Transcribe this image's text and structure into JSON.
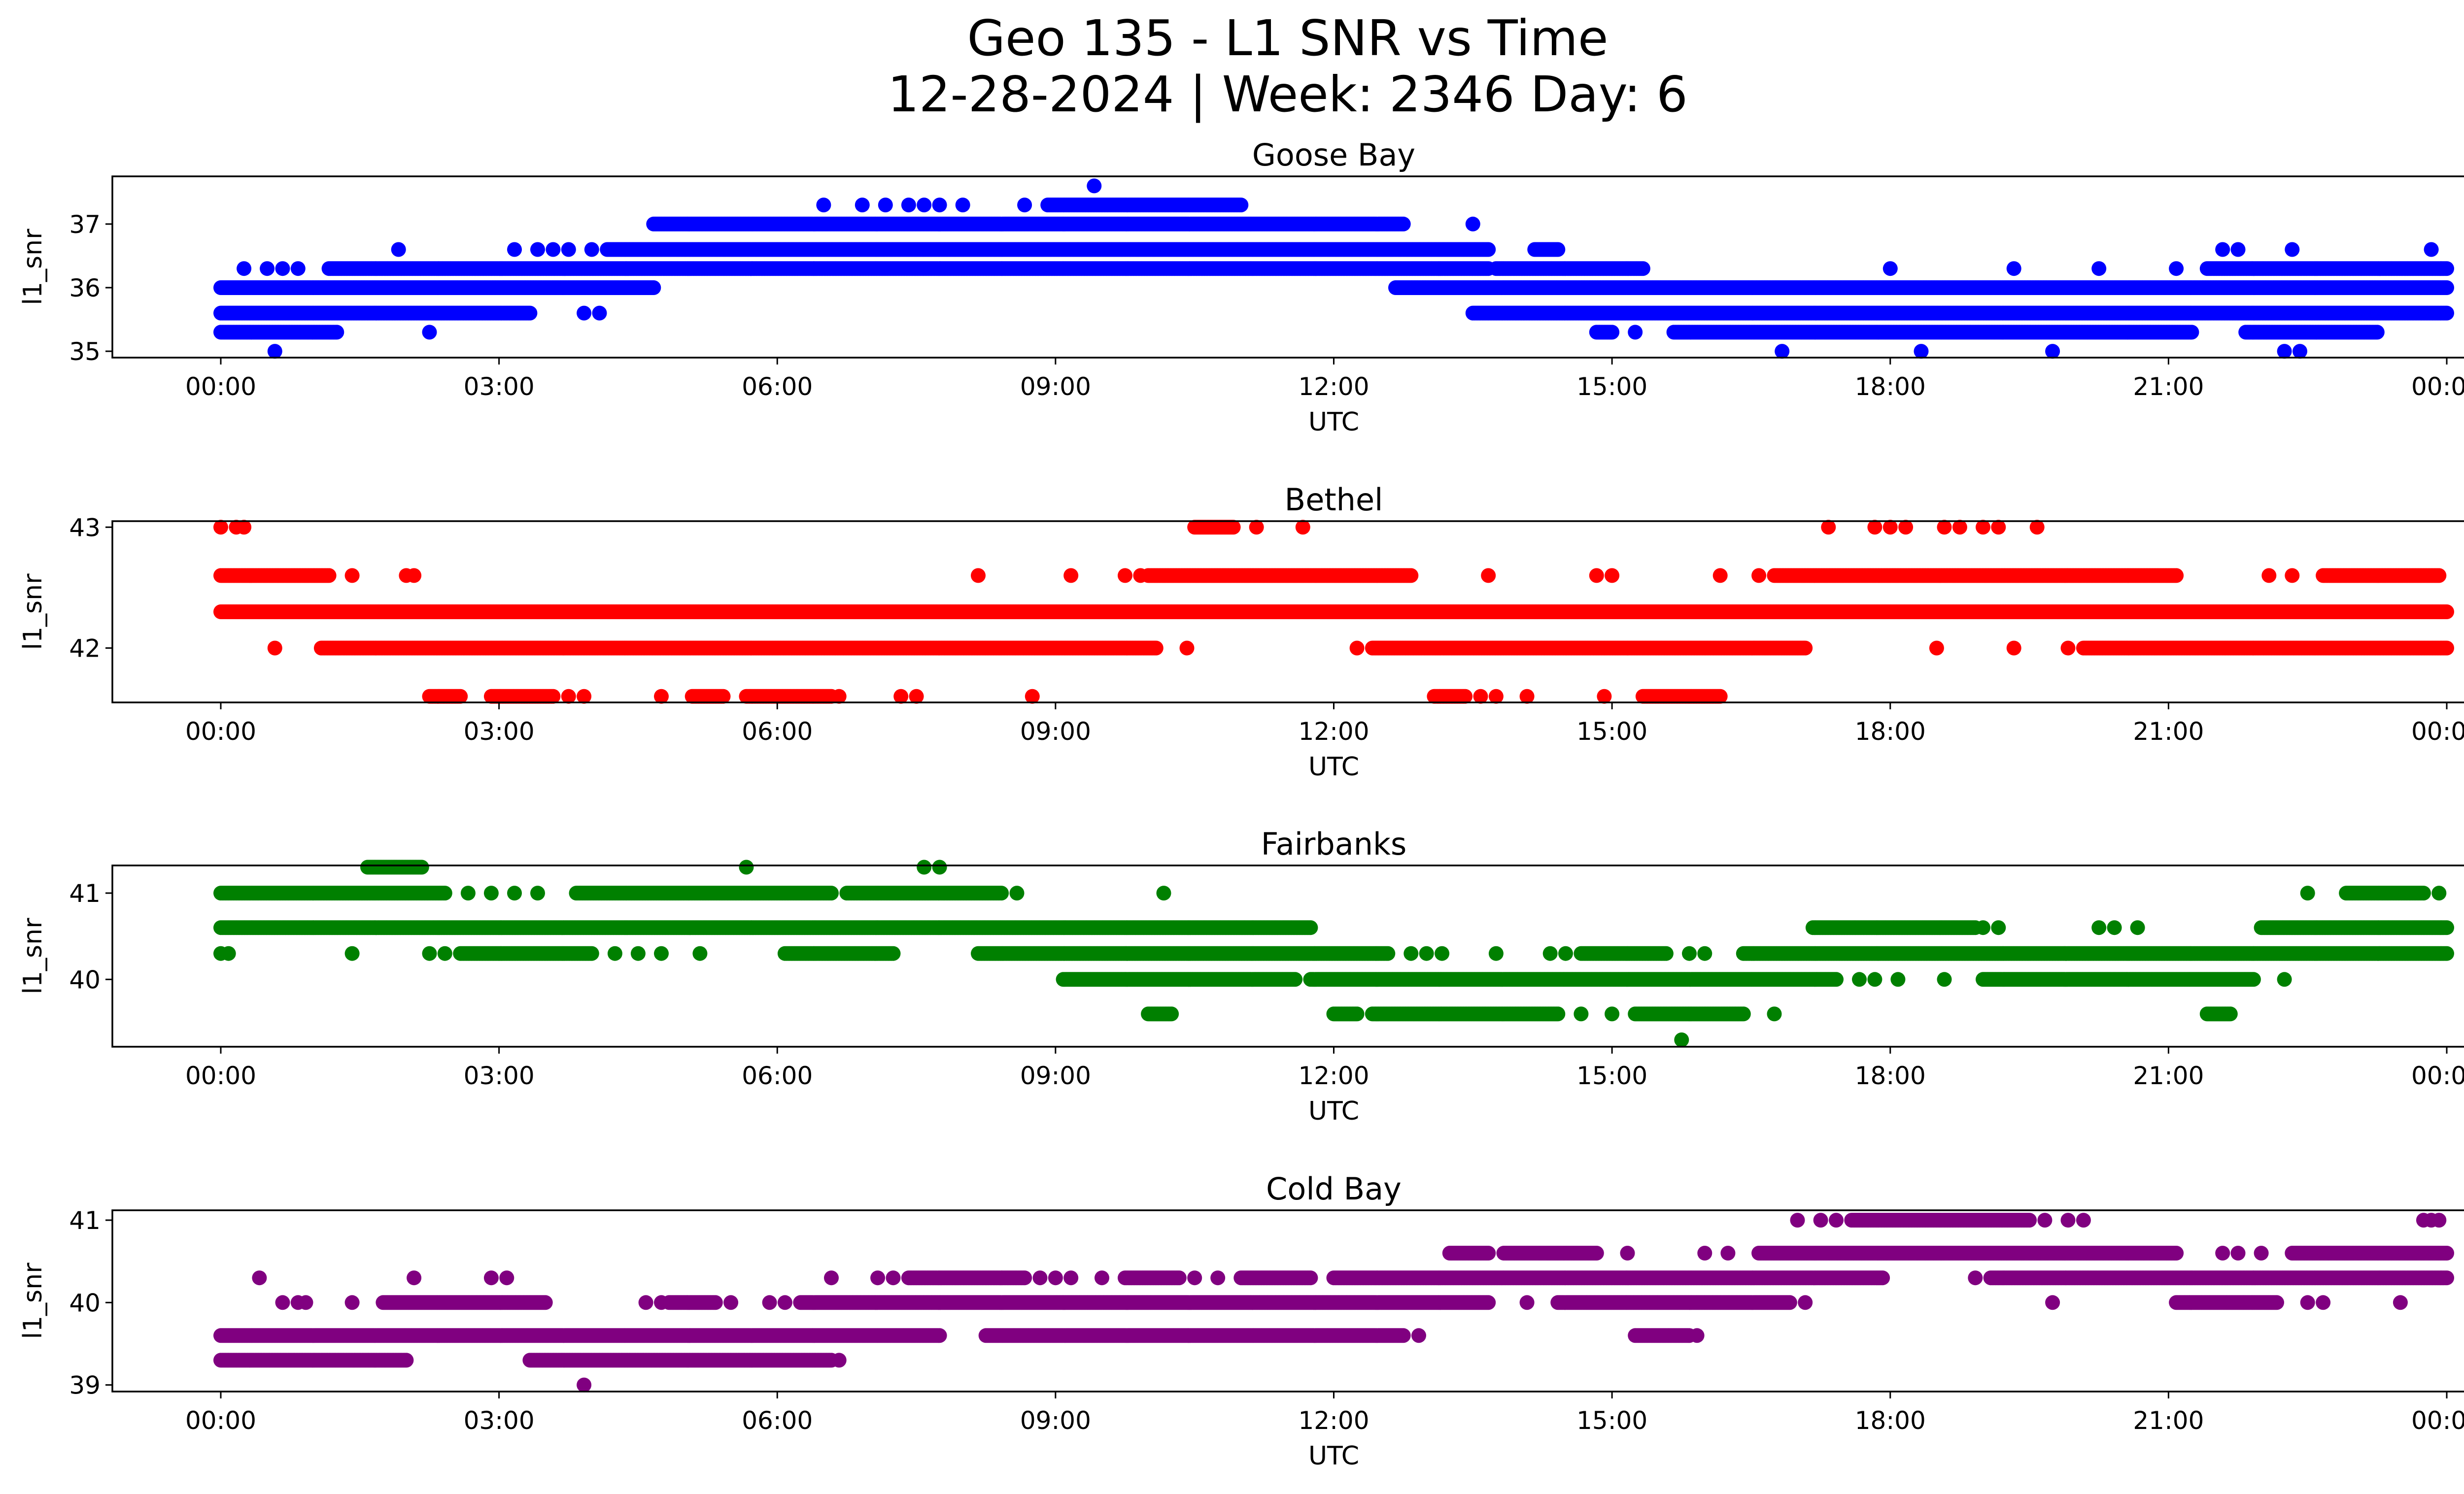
{
  "figure": {
    "title_line1": "Geo 135 - L1 SNR vs Time",
    "title_line2": "12-28-2024 | Week: 2346 Day: 6"
  },
  "chart_data": [
    {
      "type": "scatter",
      "title": "Goose Bay",
      "xlabel": "UTC",
      "ylabel": "l1_snr",
      "color": "#0000ff",
      "xlim": [
        "00:00",
        "24:00"
      ],
      "ylim": [
        34.9,
        37.75
      ],
      "xticks": [
        "00:00",
        "03:00",
        "06:00",
        "09:00",
        "12:00",
        "15:00",
        "18:00",
        "21:00",
        "00:00"
      ],
      "yticks": [
        35,
        36,
        37
      ],
      "levels": [
        {
          "snr": 35.0,
          "segments": [],
          "points": [
            "00:35",
            "16:50",
            "18:20",
            "19:45",
            "22:15",
            "22:25"
          ]
        },
        {
          "snr": 35.3,
          "segments": [
            [
              "00:00",
              "01:15"
            ],
            [
              "14:50",
              "15:00"
            ],
            [
              "15:40",
              "21:15"
            ],
            [
              "21:50",
              "23:15"
            ]
          ],
          "points": [
            "02:15",
            "15:15"
          ]
        },
        {
          "snr": 35.6,
          "segments": [
            [
              "00:00",
              "03:20"
            ],
            [
              "13:30",
              "24:00"
            ]
          ],
          "points": [
            "03:55",
            "04:05"
          ]
        },
        {
          "snr": 36.0,
          "segments": [
            [
              "00:00",
              "04:40"
            ],
            [
              "12:40",
              "24:00"
            ]
          ],
          "points": []
        },
        {
          "snr": 36.3,
          "segments": [
            [
              "01:10",
              "13:40"
            ],
            [
              "13:45",
              "15:20"
            ],
            [
              "21:25",
              "24:00"
            ]
          ],
          "points": [
            "00:15",
            "00:30",
            "00:40",
            "00:50",
            "18:00",
            "19:20",
            "20:15",
            "21:05"
          ]
        },
        {
          "snr": 36.6,
          "segments": [
            [
              "04:10",
              "13:40"
            ],
            [
              "14:10",
              "14:25"
            ]
          ],
          "points": [
            "01:55",
            "03:10",
            "03:25",
            "03:35",
            "03:45",
            "04:00",
            "21:35",
            "21:45",
            "22:20",
            "23:50"
          ]
        },
        {
          "snr": 37.0,
          "segments": [
            [
              "04:40",
              "12:45"
            ]
          ],
          "points": [
            "13:30"
          ]
        },
        {
          "snr": 37.3,
          "segments": [
            [
              "08:55",
              "11:00"
            ]
          ],
          "points": [
            "06:30",
            "06:55",
            "07:10",
            "07:25",
            "07:35",
            "07:45",
            "08:00",
            "08:40"
          ]
        },
        {
          "snr": 37.6,
          "segments": [],
          "points": [
            "09:25"
          ]
        }
      ]
    },
    {
      "type": "scatter",
      "title": "Bethel",
      "xlabel": "UTC",
      "ylabel": "l1_snr",
      "color": "#ff0000",
      "xlim": [
        "00:00",
        "24:00"
      ],
      "ylim": [
        41.55,
        43.05
      ],
      "xticks": [
        "00:00",
        "03:00",
        "06:00",
        "09:00",
        "12:00",
        "15:00",
        "18:00",
        "21:00",
        "00:00"
      ],
      "yticks": [
        42,
        43
      ],
      "levels": [
        {
          "snr": 41.6,
          "segments": [
            [
              "02:15",
              "02:35"
            ],
            [
              "02:55",
              "03:35"
            ],
            [
              "05:05",
              "05:25"
            ],
            [
              "05:40",
              "06:35"
            ],
            [
              "13:05",
              "13:25"
            ],
            [
              "15:20",
              "16:10"
            ]
          ],
          "points": [
            "03:45",
            "03:55",
            "04:45",
            "06:40",
            "07:20",
            "07:30",
            "08:45",
            "13:35",
            "13:45",
            "14:05",
            "14:55"
          ]
        },
        {
          "snr": 42.0,
          "segments": [
            [
              "01:05",
              "10:05"
            ],
            [
              "12:25",
              "17:05"
            ],
            [
              "20:05",
              "24:00"
            ]
          ],
          "points": [
            "00:35",
            "10:25",
            "12:15",
            "18:30",
            "19:20",
            "19:55"
          ]
        },
        {
          "snr": 42.3,
          "segments": [
            [
              "00:00",
              "24:00"
            ]
          ],
          "points": []
        },
        {
          "snr": 42.6,
          "segments": [
            [
              "00:00",
              "01:10"
            ],
            [
              "10:00",
              "12:50"
            ],
            [
              "16:45",
              "21:05"
            ],
            [
              "22:40",
              "23:55"
            ]
          ],
          "points": [
            "01:25",
            "02:00",
            "02:05",
            "08:10",
            "09:10",
            "09:45",
            "09:55",
            "13:40",
            "14:50",
            "15:00",
            "16:10",
            "16:35",
            "22:05",
            "22:20"
          ]
        },
        {
          "snr": 43.0,
          "segments": [
            [
              "10:30",
              "10:55"
            ]
          ],
          "points": [
            "00:00",
            "00:10",
            "00:15",
            "11:10",
            "11:40",
            "17:20",
            "17:50",
            "18:00",
            "18:10",
            "18:35",
            "18:45",
            "19:00",
            "19:10",
            "19:35"
          ]
        }
      ]
    },
    {
      "type": "scatter",
      "title": "Fairbanks",
      "xlabel": "UTC",
      "ylabel": "l1_snr",
      "color": "#008000",
      "xlim": [
        "00:00",
        "24:00"
      ],
      "ylim": [
        39.22,
        41.32
      ],
      "xticks": [
        "00:00",
        "03:00",
        "06:00",
        "09:00",
        "12:00",
        "15:00",
        "18:00",
        "21:00",
        "00:00"
      ],
      "yticks": [
        40,
        41
      ],
      "levels": [
        {
          "snr": 39.3,
          "segments": [],
          "points": [
            "15:45"
          ]
        },
        {
          "snr": 39.6,
          "segments": [
            [
              "10:00",
              "10:15"
            ],
            [
              "12:00",
              "12:15"
            ],
            [
              "12:25",
              "14:25"
            ],
            [
              "15:15",
              "16:25"
            ],
            [
              "21:25",
              "21:40"
            ]
          ],
          "points": [
            "14:40",
            "15:00",
            "16:45"
          ]
        },
        {
          "snr": 40.0,
          "segments": [
            [
              "09:05",
              "11:35"
            ],
            [
              "11:45",
              "17:25"
            ],
            [
              "19:00",
              "21:55"
            ]
          ],
          "points": [
            "17:40",
            "17:50",
            "18:05",
            "18:35",
            "22:15"
          ]
        },
        {
          "snr": 40.3,
          "segments": [
            [
              "02:35",
              "04:00"
            ],
            [
              "06:05",
              "07:15"
            ],
            [
              "08:10",
              "12:35"
            ],
            [
              "14:40",
              "15:35"
            ],
            [
              "16:25",
              "24:00"
            ]
          ],
          "points": [
            "00:00",
            "00:05",
            "01:25",
            "02:15",
            "02:25",
            "04:15",
            "04:30",
            "04:45",
            "05:10",
            "12:50",
            "13:00",
            "13:10",
            "13:45",
            "14:20",
            "14:30",
            "15:50",
            "16:00"
          ]
        },
        {
          "snr": 40.6,
          "segments": [
            [
              "00:00",
              "11:45"
            ],
            [
              "17:10",
              "18:55"
            ],
            [
              "22:00",
              "24:00"
            ]
          ],
          "points": [
            "19:00",
            "19:10",
            "20:15",
            "20:25",
            "20:40"
          ]
        },
        {
          "snr": 41.0,
          "segments": [
            [
              "00:00",
              "02:25"
            ],
            [
              "03:50",
              "06:35"
            ],
            [
              "06:45",
              "08:25"
            ],
            [
              "22:55",
              "23:45"
            ]
          ],
          "points": [
            "02:40",
            "02:55",
            "03:10",
            "03:25",
            "08:35",
            "10:10",
            "22:30",
            "23:55"
          ]
        },
        {
          "snr": 41.3,
          "segments": [
            [
              "01:35",
              "02:10"
            ]
          ],
          "points": [
            "05:40",
            "07:35",
            "07:45"
          ]
        }
      ]
    },
    {
      "type": "scatter",
      "title": "Cold Bay",
      "xlabel": "UTC",
      "ylabel": "l1_snr",
      "color": "#800080",
      "xlim": [
        "00:00",
        "24:00"
      ],
      "ylim": [
        38.92,
        41.12
      ],
      "xticks": [
        "00:00",
        "03:00",
        "06:00",
        "09:00",
        "12:00",
        "15:00",
        "18:00",
        "21:00",
        "00:00"
      ],
      "yticks": [
        39,
        40,
        41
      ],
      "levels": [
        {
          "snr": 39.0,
          "segments": [],
          "points": [
            "03:55"
          ]
        },
        {
          "snr": 39.3,
          "segments": [
            [
              "00:00",
              "02:00"
            ],
            [
              "03:20",
              "06:35"
            ]
          ],
          "points": [
            "06:40"
          ]
        },
        {
          "snr": 39.6,
          "segments": [
            [
              "00:00",
              "07:45"
            ],
            [
              "08:15",
              "12:45"
            ],
            [
              "15:15",
              "15:50"
            ]
          ],
          "points": [
            "12:55",
            "15:55"
          ]
        },
        {
          "snr": 40.0,
          "segments": [
            [
              "01:45",
              "03:30"
            ],
            [
              "04:50",
              "05:20"
            ],
            [
              "06:15",
              "13:40"
            ],
            [
              "14:25",
              "16:55"
            ],
            [
              "21:05",
              "22:10"
            ]
          ],
          "points": [
            "00:40",
            "00:50",
            "00:55",
            "01:25",
            "04:35",
            "04:45",
            "05:30",
            "05:55",
            "06:05",
            "14:05",
            "17:05",
            "19:45",
            "22:30",
            "22:40",
            "23:30"
          ]
        },
        {
          "snr": 40.3,
          "segments": [
            [
              "07:25",
              "08:40"
            ],
            [
              "09:45",
              "10:20"
            ],
            [
              "11:00",
              "11:45"
            ],
            [
              "12:00",
              "17:55"
            ],
            [
              "19:05",
              "24:00"
            ]
          ],
          "points": [
            "00:25",
            "02:05",
            "02:55",
            "03:05",
            "06:35",
            "07:05",
            "07:15",
            "08:50",
            "09:00",
            "09:10",
            "09:30",
            "10:30",
            "10:45",
            "18:55"
          ]
        },
        {
          "snr": 40.6,
          "segments": [
            [
              "13:15",
              "13:40"
            ],
            [
              "13:50",
              "14:50"
            ],
            [
              "16:35",
              "21:05"
            ],
            [
              "22:20",
              "24:00"
            ]
          ],
          "points": [
            "15:10",
            "16:00",
            "16:15",
            "21:35",
            "21:45",
            "22:00"
          ]
        },
        {
          "snr": 41.0,
          "segments": [
            [
              "17:35",
              "19:30"
            ]
          ],
          "points": [
            "17:00",
            "17:15",
            "17:25",
            "19:40",
            "19:55",
            "20:05",
            "23:45",
            "23:50",
            "23:55"
          ]
        }
      ]
    }
  ]
}
